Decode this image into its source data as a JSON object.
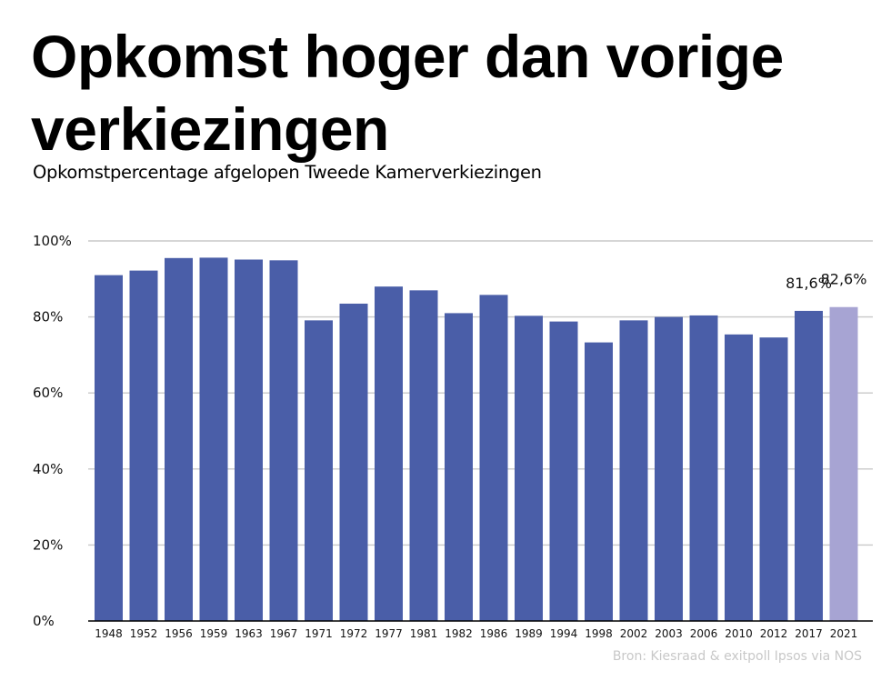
{
  "header": {
    "title": "Opkomst hoger dan vorige verkiezingen",
    "subtitle": "Opkomstpercentage afgelopen Tweede Kamerverkiezingen"
  },
  "footer": {
    "source": "Bron: Kiesraad & exitpoll Ipsos via NOS"
  },
  "chart_data": {
    "type": "bar",
    "title": "Opkomst hoger dan vorige verkiezingen",
    "subtitle": "Opkomstpercentage afgelopen Tweede Kamerverkiezingen",
    "xlabel": "",
    "ylabel": "",
    "ylim": [
      0,
      100
    ],
    "yticks": [
      0,
      20,
      40,
      60,
      80,
      100
    ],
    "ytick_labels": [
      "0%",
      "20%",
      "40%",
      "60%",
      "80%",
      "100%"
    ],
    "grid": true,
    "categories": [
      "1948",
      "1952",
      "1956",
      "1959",
      "1963",
      "1967",
      "1971",
      "1972",
      "1977",
      "1981",
      "1982",
      "1986",
      "1989",
      "1994",
      "1998",
      "2002",
      "2003",
      "2006",
      "2010",
      "2012",
      "2017",
      "2021"
    ],
    "values": [
      91.0,
      92.2,
      95.5,
      95.6,
      95.1,
      94.9,
      79.1,
      83.5,
      88.0,
      87.0,
      81.0,
      85.8,
      80.3,
      78.8,
      73.3,
      79.1,
      80.0,
      80.4,
      75.4,
      74.6,
      81.6,
      82.6
    ],
    "colors": [
      "#4a5ea8",
      "#4a5ea8",
      "#4a5ea8",
      "#4a5ea8",
      "#4a5ea8",
      "#4a5ea8",
      "#4a5ea8",
      "#4a5ea8",
      "#4a5ea8",
      "#4a5ea8",
      "#4a5ea8",
      "#4a5ea8",
      "#4a5ea8",
      "#4a5ea8",
      "#4a5ea8",
      "#4a5ea8",
      "#4a5ea8",
      "#4a5ea8",
      "#4a5ea8",
      "#4a5ea8",
      "#4a5ea8",
      "#a7a4d3"
    ],
    "data_labels": [
      {
        "category": "2017",
        "text": "81,6%"
      },
      {
        "category": "2021",
        "text": "82,6%"
      }
    ],
    "gridline_color": "#c8c8c8",
    "axis_color": "#000000"
  }
}
